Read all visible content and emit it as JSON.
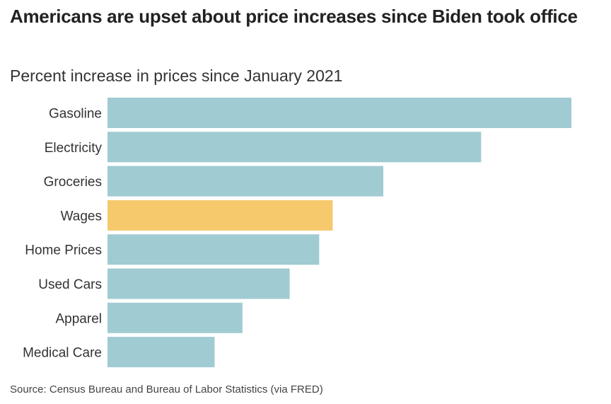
{
  "header": {
    "title": "Americans are upset about price increases since Biden took office",
    "subtitle": "Percent increase in prices since January 2021"
  },
  "footer": {
    "source": "Source: Census Bureau and Bureau of Labor Statistics (via FRED)"
  },
  "colors": {
    "default_bar": "#a0cbd2",
    "highlight_bar": "#f6c96d"
  },
  "chart_data": {
    "type": "bar",
    "orientation": "horizontal",
    "title": "Americans are upset about price increases since Biden took office",
    "subtitle": "Percent increase in prices since January 2021",
    "xlabel": "",
    "ylabel": "",
    "categories": [
      "Gasoline",
      "Electricity",
      "Groceries",
      "Wages",
      "Home Prices",
      "Used Cars",
      "Apparel",
      "Medical Care"
    ],
    "values": [
      55,
      44.3,
      32.7,
      26.7,
      25.1,
      21.6,
      16,
      12.7
    ],
    "highlight": [
      "Wages"
    ],
    "xlim": [
      0,
      55
    ],
    "grid": false,
    "axis_visible": false,
    "value_labels_visible": false,
    "note": "Values estimated relative to bar lengths; no axis or numeric labels shown"
  }
}
